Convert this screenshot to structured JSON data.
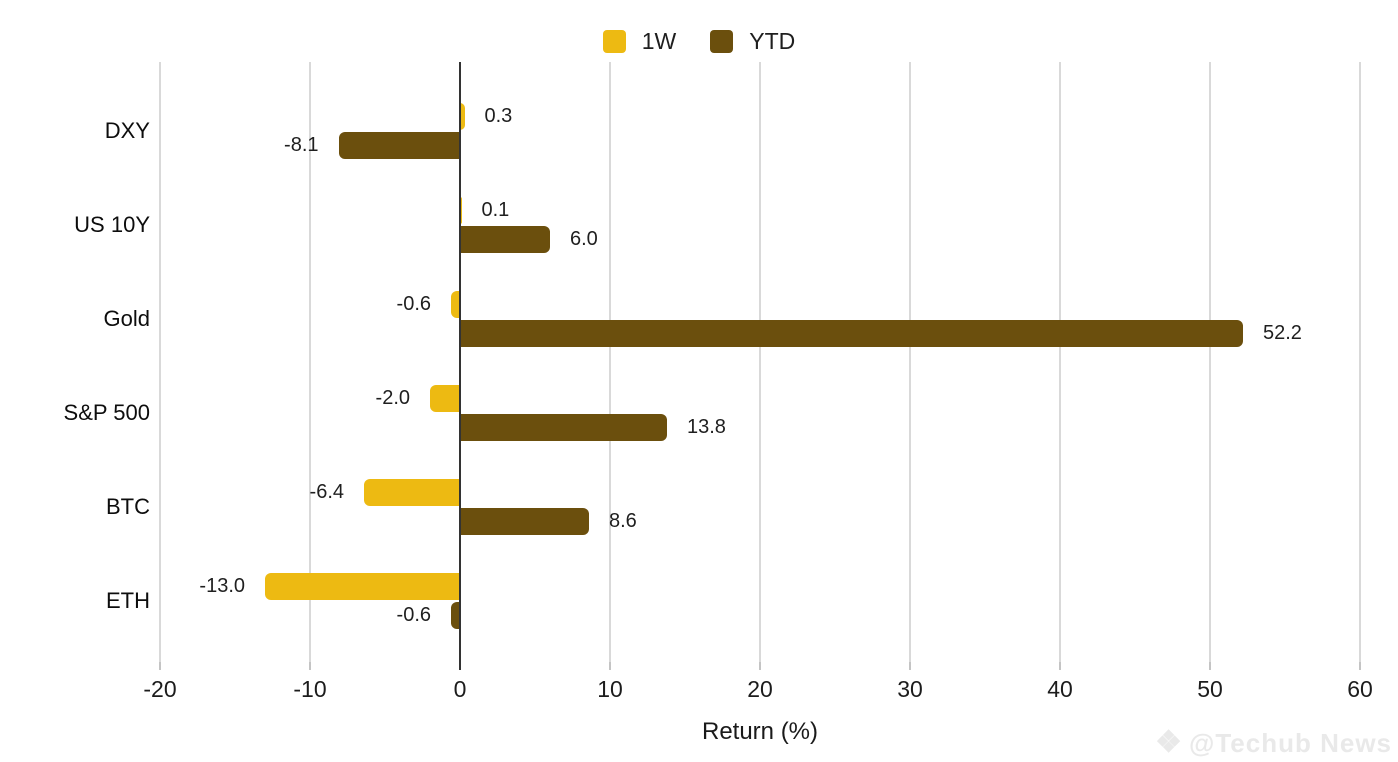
{
  "chart_data": {
    "type": "bar",
    "orientation": "horizontal",
    "title": "",
    "xlabel": "Return (%)",
    "ylabel": "",
    "categories": [
      "DXY",
      "US 10Y",
      "Gold",
      "S&P 500",
      "BTC",
      "ETH"
    ],
    "series": [
      {
        "name": "1W",
        "color": "#EDBA12",
        "values": [
          0.3,
          0.1,
          -0.6,
          -2.0,
          -6.4,
          -13.0
        ],
        "labels": [
          "0.3",
          "0.1",
          "-0.6",
          "-2.0",
          "-6.4",
          "-13.0"
        ]
      },
      {
        "name": "YTD",
        "color": "#6B4F0D",
        "values": [
          -8.1,
          6.0,
          52.2,
          13.8,
          8.6,
          -0.6
        ],
        "labels": [
          "-8.1",
          "6.0",
          "52.2",
          "13.8",
          "8.6",
          "-0.6"
        ]
      }
    ],
    "xlim": [
      -20,
      60
    ],
    "xticks": [
      -20,
      -10,
      0,
      10,
      20,
      30,
      40,
      50,
      60
    ],
    "xtick_labels": [
      "-20",
      "-10",
      "0",
      "10",
      "20",
      "30",
      "40",
      "50",
      "60"
    ],
    "grid": true,
    "legend_position": "top",
    "value_labels_shown": true
  },
  "colors": {
    "background": "#ffffff",
    "gridline": "#d9d9d9",
    "zero_axis": "#333333",
    "tick_mark": "#c4c4c4",
    "text": "#1f1f1f",
    "watermark": "#e9e9e9"
  },
  "watermark": {
    "icon": "diamond-ornament",
    "text": "@Techub News"
  }
}
